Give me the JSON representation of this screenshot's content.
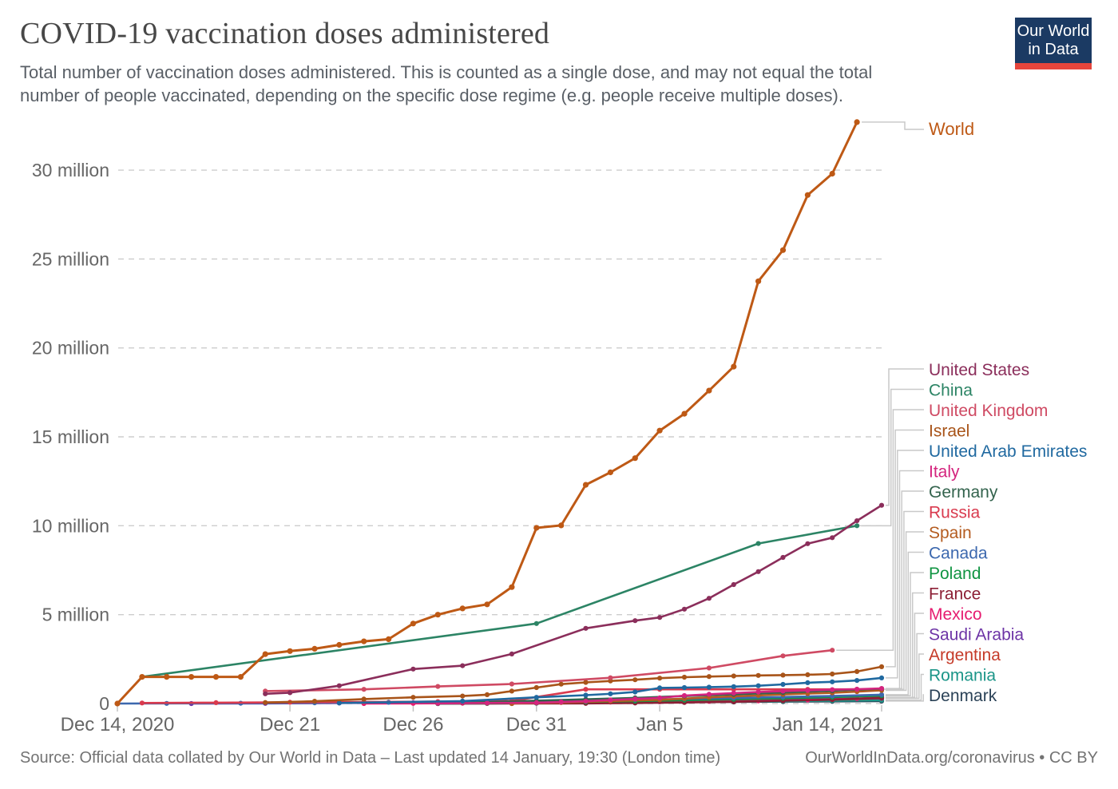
{
  "header": {
    "title": "COVID-19 vaccination doses administered",
    "subtitle_line1": "Total number of vaccination doses administered. This is counted as a single dose, and may not equal the total",
    "subtitle_line2": "number of people vaccinated, depending on the specific dose regime (e.g. people receive multiple doses)."
  },
  "logo": {
    "line1": "Our World",
    "line2": "in Data"
  },
  "footer": {
    "source": "Source: Official data collated by Our World in Data – Last updated 14 January, 19:30 (London time)",
    "link": "OurWorldInData.org/coronavirus • CC BY"
  },
  "chart_data": {
    "type": "line",
    "title": "COVID-19 vaccination doses administered",
    "unit": "million doses",
    "x_axis": {
      "description": "days since Dec 14, 2020",
      "ticks": [
        {
          "day": 0,
          "label": "Dec 14, 2020"
        },
        {
          "day": 7,
          "label": "Dec 21"
        },
        {
          "day": 12,
          "label": "Dec 26"
        },
        {
          "day": 17,
          "label": "Dec 31"
        },
        {
          "day": 22,
          "label": "Jan 5"
        },
        {
          "day": 31,
          "label": "Jan 14, 2021"
        }
      ]
    },
    "y_axis": {
      "range_millions": [
        0,
        33
      ],
      "grid": "dashed",
      "ticks": [
        {
          "value": 0,
          "label": "0"
        },
        {
          "value": 5,
          "label": "5 million"
        },
        {
          "value": 10,
          "label": "10 million"
        },
        {
          "value": 15,
          "label": "15 million"
        },
        {
          "value": 20,
          "label": "20 million"
        },
        {
          "value": 25,
          "label": "25 million"
        },
        {
          "value": 30,
          "label": "30 million"
        }
      ]
    },
    "world": {
      "id": "world",
      "name": "World",
      "color": "#be5915",
      "points": [
        [
          0,
          0
        ],
        [
          1,
          1.5
        ],
        [
          2,
          1.5
        ],
        [
          3,
          1.5
        ],
        [
          4,
          1.5
        ],
        [
          5,
          1.5
        ],
        [
          6,
          2.78
        ],
        [
          7,
          2.95
        ],
        [
          8,
          3.08
        ],
        [
          9,
          3.3
        ],
        [
          10,
          3.5
        ],
        [
          11,
          3.62
        ],
        [
          12,
          4.5
        ],
        [
          13,
          5.0
        ],
        [
          14,
          5.35
        ],
        [
          15,
          5.58
        ],
        [
          16,
          6.55
        ],
        [
          17,
          9.88
        ],
        [
          18,
          10.02
        ],
        [
          19,
          12.3
        ],
        [
          20,
          13.0
        ],
        [
          21,
          13.8
        ],
        [
          22,
          15.35
        ],
        [
          23,
          16.3
        ],
        [
          24,
          17.6
        ],
        [
          25,
          18.95
        ],
        [
          26,
          23.75
        ],
        [
          27,
          25.5
        ],
        [
          28,
          28.6
        ],
        [
          29,
          29.8
        ],
        [
          30,
          32.7
        ]
      ]
    },
    "series": [
      {
        "id": "united-states",
        "name": "United States",
        "color": "#8b2e5b",
        "points": [
          [
            6,
            0.55
          ],
          [
            7,
            0.61
          ],
          [
            9,
            1.0
          ],
          [
            12,
            1.94
          ],
          [
            14,
            2.13
          ],
          [
            16,
            2.79
          ],
          [
            19,
            4.23
          ],
          [
            21,
            4.66
          ],
          [
            22,
            4.84
          ],
          [
            23,
            5.31
          ],
          [
            24,
            5.92
          ],
          [
            25,
            6.69
          ],
          [
            26,
            7.42
          ],
          [
            27,
            8.22
          ],
          [
            28,
            8.99
          ],
          [
            29,
            9.33
          ],
          [
            30,
            10.28
          ],
          [
            31,
            11.15
          ]
        ]
      },
      {
        "id": "china",
        "name": "China",
        "color": "#2c8465",
        "points": [
          [
            1,
            1.5
          ],
          [
            17,
            4.5
          ],
          [
            26,
            9.0
          ],
          [
            30,
            10.0
          ]
        ]
      },
      {
        "id": "united-kingdom",
        "name": "United Kingdom",
        "color": "#cf4a63",
        "points": [
          [
            6,
            0.7
          ],
          [
            10,
            0.8
          ],
          [
            13,
            0.96
          ],
          [
            16,
            1.1
          ],
          [
            20,
            1.45
          ],
          [
            24,
            2.0
          ],
          [
            27,
            2.68
          ],
          [
            29,
            3.0
          ]
        ]
      },
      {
        "id": "israel",
        "name": "Israel",
        "color": "#a85419",
        "points": [
          [
            6,
            0.06
          ],
          [
            8,
            0.13
          ],
          [
            10,
            0.25
          ],
          [
            12,
            0.35
          ],
          [
            14,
            0.42
          ],
          [
            15,
            0.5
          ],
          [
            16,
            0.7
          ],
          [
            17,
            0.9
          ],
          [
            18,
            1.09
          ],
          [
            19,
            1.19
          ],
          [
            20,
            1.27
          ],
          [
            21,
            1.34
          ],
          [
            22,
            1.43
          ],
          [
            23,
            1.48
          ],
          [
            24,
            1.52
          ],
          [
            25,
            1.55
          ],
          [
            26,
            1.58
          ],
          [
            27,
            1.6
          ],
          [
            28,
            1.62
          ],
          [
            29,
            1.66
          ],
          [
            30,
            1.8
          ],
          [
            31,
            2.07
          ]
        ]
      },
      {
        "id": "united-arab-emirates",
        "name": "United Arab Emirates",
        "color": "#2069a0",
        "points": [
          [
            9,
            0.03
          ],
          [
            14,
            0.14
          ],
          [
            17,
            0.35
          ],
          [
            19,
            0.47
          ],
          [
            20,
            0.55
          ],
          [
            21,
            0.65
          ],
          [
            22,
            0.88
          ],
          [
            23,
            0.9
          ],
          [
            24,
            0.92
          ],
          [
            25,
            0.95
          ],
          [
            26,
            1.0
          ],
          [
            27,
            1.08
          ],
          [
            28,
            1.17
          ],
          [
            29,
            1.22
          ],
          [
            30,
            1.3
          ],
          [
            31,
            1.44
          ]
        ]
      },
      {
        "id": "italy",
        "name": "Italy",
        "color": "#d4247e",
        "points": [
          [
            13,
            0.01
          ],
          [
            15,
            0.03
          ],
          [
            17,
            0.05
          ],
          [
            18,
            0.09
          ],
          [
            19,
            0.13
          ],
          [
            20,
            0.2
          ],
          [
            21,
            0.26
          ],
          [
            22,
            0.32
          ],
          [
            23,
            0.45
          ],
          [
            24,
            0.52
          ],
          [
            25,
            0.59
          ],
          [
            26,
            0.65
          ],
          [
            27,
            0.7
          ],
          [
            28,
            0.74
          ],
          [
            29,
            0.78
          ],
          [
            30,
            0.81
          ],
          [
            31,
            0.85
          ]
        ]
      },
      {
        "id": "germany",
        "name": "Germany",
        "color": "#33634d",
        "points": [
          [
            13,
            0.02
          ],
          [
            15,
            0.08
          ],
          [
            17,
            0.16
          ],
          [
            19,
            0.24
          ],
          [
            21,
            0.32
          ],
          [
            23,
            0.42
          ],
          [
            25,
            0.52
          ],
          [
            27,
            0.62
          ],
          [
            29,
            0.72
          ],
          [
            31,
            0.84
          ]
        ]
      },
      {
        "id": "russia",
        "name": "Russia",
        "color": "#d93a4e",
        "points": [
          [
            1,
            0.03
          ],
          [
            4,
            0.05
          ],
          [
            7,
            0.07
          ],
          [
            10,
            0.09
          ],
          [
            13,
            0.11
          ],
          [
            16,
            0.15
          ],
          [
            19,
            0.8
          ],
          [
            22,
            0.8
          ],
          [
            25,
            0.8
          ],
          [
            28,
            0.8
          ],
          [
            30,
            0.8
          ]
        ]
      },
      {
        "id": "spain",
        "name": "Spain",
        "color": "#b45c20",
        "points": [
          [
            16,
            0.0
          ],
          [
            18,
            0.06
          ],
          [
            20,
            0.14
          ],
          [
            22,
            0.21
          ],
          [
            23,
            0.28
          ],
          [
            24,
            0.35
          ],
          [
            25,
            0.41
          ],
          [
            26,
            0.46
          ],
          [
            27,
            0.51
          ],
          [
            28,
            0.56
          ],
          [
            29,
            0.6
          ],
          [
            30,
            0.67
          ],
          [
            31,
            0.74
          ]
        ]
      },
      {
        "id": "canada",
        "name": "Canada",
        "color": "#3c68ae",
        "points": [
          [
            0,
            0.0
          ],
          [
            2,
            0.01
          ],
          [
            5,
            0.02
          ],
          [
            8,
            0.04
          ],
          [
            11,
            0.07
          ],
          [
            14,
            0.1
          ],
          [
            17,
            0.14
          ],
          [
            19,
            0.17
          ],
          [
            21,
            0.21
          ],
          [
            23,
            0.26
          ],
          [
            25,
            0.31
          ],
          [
            27,
            0.37
          ],
          [
            29,
            0.42
          ],
          [
            31,
            0.5
          ]
        ]
      },
      {
        "id": "poland",
        "name": "Poland",
        "color": "#109442",
        "points": [
          [
            13,
            0.0
          ],
          [
            15,
            0.02
          ],
          [
            17,
            0.05
          ],
          [
            19,
            0.09
          ],
          [
            21,
            0.14
          ],
          [
            23,
            0.19
          ],
          [
            25,
            0.24
          ],
          [
            27,
            0.3
          ],
          [
            29,
            0.36
          ],
          [
            31,
            0.44
          ]
        ]
      },
      {
        "id": "france",
        "name": "France",
        "color": "#8c1f35",
        "points": [
          [
            13,
            0.0
          ],
          [
            16,
            0.0
          ],
          [
            19,
            0.01
          ],
          [
            21,
            0.03
          ],
          [
            23,
            0.06
          ],
          [
            25,
            0.1
          ],
          [
            27,
            0.16
          ],
          [
            29,
            0.22
          ],
          [
            31,
            0.32
          ]
        ]
      },
      {
        "id": "mexico",
        "name": "Mexico",
        "color": "#e61c70",
        "points": [
          [
            10,
            0.0
          ],
          [
            12,
            0.01
          ],
          [
            14,
            0.02
          ],
          [
            16,
            0.04
          ],
          [
            18,
            0.06
          ],
          [
            20,
            0.08
          ],
          [
            22,
            0.1
          ],
          [
            24,
            0.12
          ],
          [
            26,
            0.15
          ],
          [
            28,
            0.2
          ],
          [
            30,
            0.28
          ],
          [
            31,
            0.35
          ]
        ]
      },
      {
        "id": "saudi-arabia",
        "name": "Saudi Arabia",
        "color": "#6d34a6",
        "points": [
          [
            3,
            0.0
          ],
          [
            6,
            0.01
          ],
          [
            9,
            0.03
          ],
          [
            12,
            0.05
          ],
          [
            15,
            0.08
          ],
          [
            18,
            0.11
          ],
          [
            21,
            0.14
          ],
          [
            24,
            0.18
          ],
          [
            27,
            0.22
          ],
          [
            29,
            0.26
          ],
          [
            31,
            0.3
          ]
        ]
      },
      {
        "id": "argentina",
        "name": "Argentina",
        "color": "#c53a28",
        "points": [
          [
            15,
            0.01
          ],
          [
            17,
            0.03
          ],
          [
            19,
            0.05
          ],
          [
            21,
            0.07
          ],
          [
            23,
            0.1
          ],
          [
            25,
            0.13
          ],
          [
            27,
            0.17
          ],
          [
            29,
            0.22
          ],
          [
            31,
            0.29
          ]
        ]
      },
      {
        "id": "romania",
        "name": "Romania",
        "color": "#1b9588",
        "points": [
          [
            13,
            0.0
          ],
          [
            15,
            0.01
          ],
          [
            17,
            0.02
          ],
          [
            19,
            0.04
          ],
          [
            21,
            0.06
          ],
          [
            23,
            0.09
          ],
          [
            25,
            0.11
          ],
          [
            27,
            0.13
          ],
          [
            29,
            0.16
          ],
          [
            31,
            0.19
          ]
        ]
      },
      {
        "id": "denmark",
        "name": "Denmark",
        "color": "#2b4257",
        "points": [
          [
            13,
            0.0
          ],
          [
            15,
            0.01
          ],
          [
            17,
            0.02
          ],
          [
            19,
            0.04
          ],
          [
            21,
            0.06
          ],
          [
            23,
            0.08
          ],
          [
            25,
            0.09
          ],
          [
            27,
            0.11
          ],
          [
            29,
            0.12
          ],
          [
            31,
            0.14
          ]
        ]
      }
    ],
    "legend_position": "right"
  }
}
